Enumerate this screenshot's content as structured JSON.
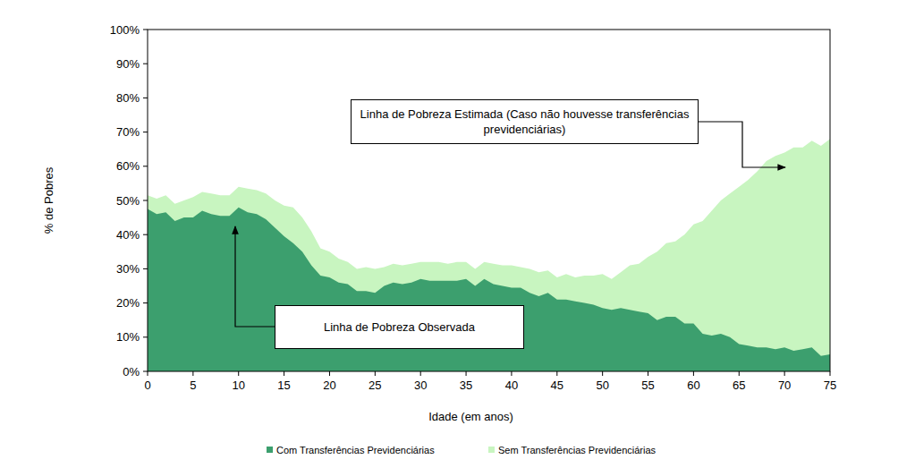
{
  "chart_data": {
    "type": "area",
    "x_label": "Idade (em anos)",
    "y_label": "% de Pobres",
    "annotations": [
      "Linha de Pobreza Estimada (Caso não houvesse transferências previdenciárias)",
      "Linha de Pobreza Observada"
    ],
    "x": [
      0,
      1,
      2,
      3,
      4,
      5,
      6,
      7,
      8,
      9,
      10,
      11,
      12,
      13,
      14,
      15,
      16,
      17,
      18,
      19,
      20,
      21,
      22,
      23,
      24,
      25,
      26,
      27,
      28,
      29,
      30,
      31,
      32,
      33,
      34,
      35,
      36,
      37,
      38,
      39,
      40,
      41,
      42,
      43,
      44,
      45,
      46,
      47,
      48,
      49,
      50,
      51,
      52,
      53,
      54,
      55,
      56,
      57,
      58,
      59,
      60,
      61,
      62,
      63,
      64,
      65,
      66,
      67,
      68,
      69,
      70,
      71,
      72,
      73,
      74,
      75
    ],
    "series": [
      {
        "name": "Com Transferências Previdenciárias",
        "color": "#3c9f6e",
        "values": [
          47.5,
          46,
          46.5,
          44,
          45,
          45,
          47,
          46,
          45.5,
          45.5,
          48,
          46.5,
          46,
          44.5,
          42,
          39.5,
          37.5,
          35,
          31,
          28,
          27.5,
          26,
          25.5,
          23.5,
          23.5,
          23,
          25,
          26,
          25.5,
          26,
          27,
          26.5,
          26.5,
          26.5,
          26.5,
          27,
          25,
          27,
          25.5,
          25,
          24.5,
          24.5,
          23,
          22,
          23,
          21,
          21,
          20.5,
          20,
          19.5,
          18.5,
          18,
          18.5,
          18,
          17.5,
          17,
          15,
          16,
          16,
          14,
          14,
          11,
          10.5,
          11,
          10,
          8,
          7.5,
          7,
          7,
          6.5,
          7,
          6,
          6.5,
          7,
          4.5,
          5
        ]
      },
      {
        "name": "Sem Transferências Previdenciárias",
        "color": "#c8f5c0",
        "values": [
          51.5,
          50.5,
          51.5,
          49,
          50,
          51,
          52.5,
          52,
          51.5,
          51.5,
          54,
          53.5,
          53,
          52,
          50,
          48.5,
          48,
          45,
          41,
          36,
          35,
          33,
          32,
          30,
          30.5,
          30,
          30.5,
          31.5,
          31,
          31.5,
          32,
          32,
          32,
          31.5,
          32,
          32,
          30,
          32,
          31.5,
          31,
          31,
          30.5,
          30,
          29,
          29.5,
          27.5,
          28.5,
          27.5,
          28,
          28,
          28.5,
          27,
          29,
          31,
          31.5,
          33.5,
          35,
          37.5,
          38,
          40,
          43,
          44,
          47,
          50,
          52,
          54,
          56,
          58.5,
          61.5,
          63,
          64,
          65.5,
          65.5,
          67.5,
          66,
          68
        ]
      }
    ],
    "xlim": [
      0,
      75
    ],
    "xticks": [
      0,
      5,
      10,
      15,
      20,
      25,
      30,
      35,
      40,
      45,
      50,
      55,
      60,
      65,
      70,
      75
    ],
    "ylim": [
      0,
      100
    ],
    "yticks": [
      {
        "value": 0,
        "label": "0%"
      },
      {
        "value": 10,
        "label": "10%"
      },
      {
        "value": 20,
        "label": "20%"
      },
      {
        "value": 30,
        "label": "30%"
      },
      {
        "value": 40,
        "label": "40%"
      },
      {
        "value": 50,
        "label": "50%"
      },
      {
        "value": 60,
        "label": "60%"
      },
      {
        "value": 70,
        "label": "70%"
      },
      {
        "value": 80,
        "label": "80%"
      },
      {
        "value": 90,
        "label": "90%"
      },
      {
        "value": 100,
        "label": "100%"
      }
    ],
    "legend": "bottom"
  }
}
